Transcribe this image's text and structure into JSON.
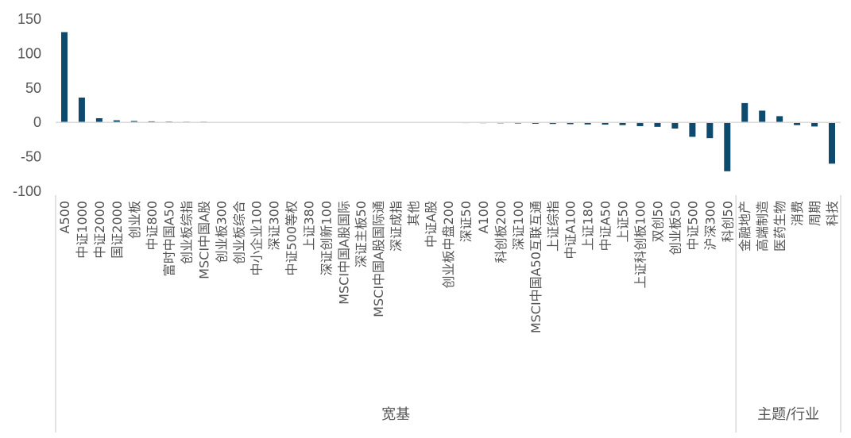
{
  "colors": {
    "bar": "#0d4a6e",
    "grid": "#d9d9d9",
    "text": "#555555"
  },
  "chart_data": {
    "type": "bar",
    "title": "",
    "xlabel": "",
    "ylabel": "",
    "ylim": [
      -100,
      150
    ],
    "yticks": [
      150,
      100,
      50,
      0,
      -50,
      -100
    ],
    "grid": false,
    "legend": "none",
    "categories": [
      "A500",
      "中证1000",
      "中证2000",
      "国证2000",
      "创业板",
      "中证800",
      "富时中国A50",
      "创业板综指",
      "MSCI中国A股",
      "创业板300",
      "创业板综合",
      "中小企业100",
      "深证300",
      "中证500等权",
      "上证380",
      "深证创新100",
      "MSCI中国A股国际",
      "深证主板50",
      "MSCI中国A股国际通",
      "深证成指",
      "其他",
      "中证A股",
      "创业板中盘200",
      "深证50",
      "A100",
      "科创板200",
      "深证100",
      "MSCI中国A50互联互通",
      "上证综指",
      "中证A100",
      "上证180",
      "中证A50",
      "上证50",
      "上证科创板100",
      "双创50",
      "创业板50",
      "中证500",
      "沪深300",
      "科创50",
      "金融地产",
      "高端制造",
      "医药生物",
      "消费",
      "周期",
      "科技"
    ],
    "values": [
      131,
      36,
      6,
      3,
      2,
      1.5,
      1.2,
      1.0,
      1.0,
      0.8,
      0.5,
      0.3,
      0.2,
      0.1,
      0.1,
      0.1,
      -0.3,
      -0.5,
      -0.5,
      -0.6,
      -0.7,
      -0.8,
      -0.9,
      -1.0,
      -1.1,
      -1.3,
      -1.6,
      -2.0,
      -2.3,
      -2.6,
      -3.0,
      -3.3,
      -4.0,
      -5.5,
      -6.5,
      -9.0,
      -21,
      -23,
      -71,
      28,
      17,
      9,
      -4,
      -6,
      -60
    ],
    "groups": [
      {
        "label": "宽基",
        "count": 39
      },
      {
        "label": "主题/行业",
        "count": 6
      }
    ]
  }
}
